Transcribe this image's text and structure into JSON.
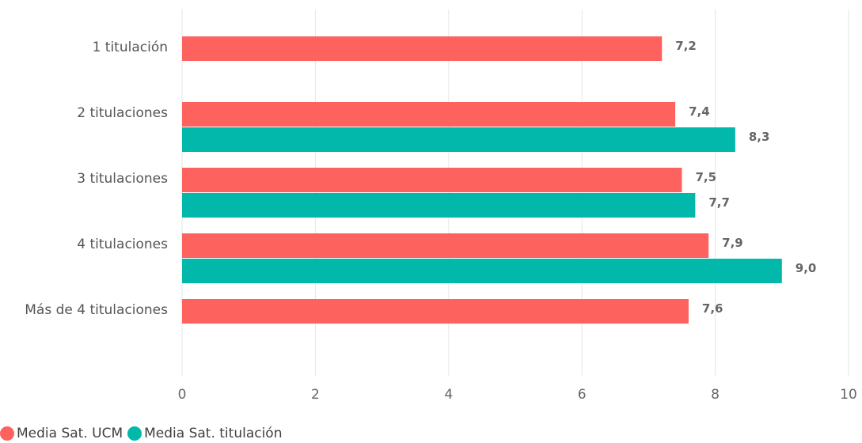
{
  "chart_data": {
    "type": "bar",
    "orientation": "horizontal",
    "categories": [
      "1 titulación",
      "2 titulaciones",
      "3 titulaciones",
      "4 titulaciones",
      "Más de 4 titulaciones"
    ],
    "series": [
      {
        "name": "Media Sat. UCM",
        "color": "#FD625E",
        "values": [
          7.2,
          7.4,
          7.5,
          7.9,
          7.6
        ],
        "labels": [
          "7,2",
          "7,4",
          "7,5",
          "7,9",
          "7,6"
        ]
      },
      {
        "name": "Media Sat. titulación",
        "color": "#01B8AA",
        "values": [
          null,
          8.3,
          7.7,
          9.0,
          null
        ],
        "labels": [
          null,
          "8,3",
          "7,7",
          "9,0",
          null
        ]
      }
    ],
    "xlim": [
      0,
      10
    ],
    "xticks": [
      0,
      2,
      4,
      6,
      8,
      10
    ],
    "xtick_labels": [
      "0",
      "2",
      "4",
      "6",
      "8",
      "10"
    ],
    "grid": "vertical",
    "legend": "bottom-left",
    "title": "",
    "xlabel": "",
    "ylabel": ""
  }
}
